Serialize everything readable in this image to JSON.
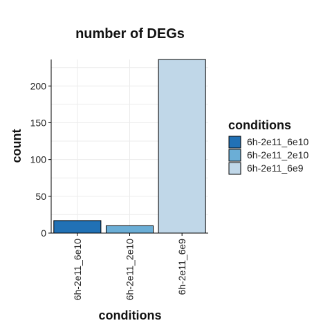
{
  "chart_data": {
    "type": "bar",
    "title": "number of DEGs",
    "xlabel": "conditions",
    "ylabel": "count",
    "categories": [
      "6h-2e11_6e10",
      "6h-2e11_2e10",
      "6h-2e11_6e9"
    ],
    "values": [
      17,
      10,
      236
    ],
    "colors": [
      "#2171b5",
      "#6baed6",
      "#c0d7e8"
    ],
    "ylim": [
      0,
      236
    ],
    "yticks": [
      0,
      50,
      100,
      150,
      200
    ],
    "grid": true,
    "legend": {
      "title": "conditions",
      "position": "right",
      "entries": [
        "6h-2e11_6e10",
        "6h-2e11_2e10",
        "6h-2e11_6e9"
      ]
    }
  }
}
